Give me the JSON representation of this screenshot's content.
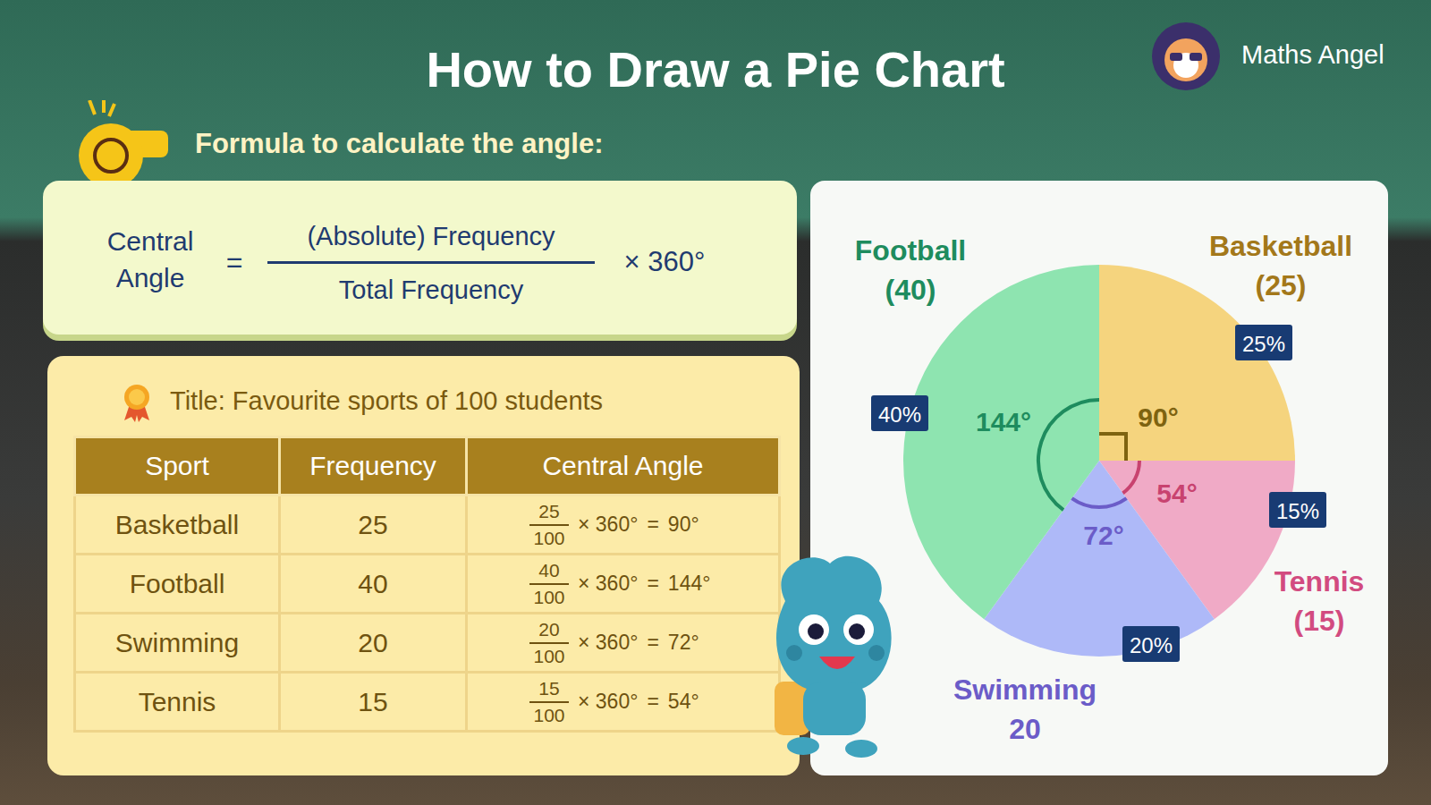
{
  "header": {
    "title": "How to Draw a Pie Chart",
    "brand": "Maths Angel"
  },
  "formula": {
    "heading": "Formula to calculate the angle:",
    "lhs": [
      "Central",
      "Angle"
    ],
    "equals": "=",
    "numerator": "(Absolute) Frequency",
    "denominator": "Total Frequency",
    "multiplier": "× 360°"
  },
  "table": {
    "title": "Title: Favourite sports of 100 students",
    "columns": [
      "Sport",
      "Frequency",
      "Central Angle"
    ],
    "rows": [
      {
        "sport": "Basketball",
        "frequency": "25",
        "angle": {
          "numerator": "25",
          "denominator": "100",
          "multiplier": "× 360°",
          "equals": "=",
          "result": "90°"
        }
      },
      {
        "sport": "Football",
        "frequency": "40",
        "angle": {
          "numerator": "40",
          "denominator": "100",
          "multiplier": "× 360°",
          "equals": "=",
          "result": "144°"
        }
      },
      {
        "sport": "Swimming",
        "frequency": "20",
        "angle": {
          "numerator": "20",
          "denominator": "100",
          "multiplier": "× 360°",
          "equals": "=",
          "result": "72°"
        }
      },
      {
        "sport": "Tennis",
        "frequency": "15",
        "angle": {
          "numerator": "15",
          "denominator": "100",
          "multiplier": "× 360°",
          "equals": "=",
          "result": "54°"
        }
      }
    ]
  },
  "chart_data": {
    "type": "pie",
    "categories": [
      "Basketball",
      "Tennis",
      "Swimming",
      "Football"
    ],
    "values": [
      25,
      15,
      20,
      40
    ],
    "colors": [
      "#F5D47E",
      "#F0AAC6",
      "#AEB9F8",
      "#8EE4B0"
    ],
    "count_labels": [
      "(25)",
      "(15)",
      "20",
      "(40)"
    ],
    "data_labels": true,
    "value_labels": [
      "25%",
      "15%",
      "20%",
      "40%"
    ],
    "angle_labels": [
      "90°",
      "54°",
      "72°",
      "144°"
    ]
  }
}
